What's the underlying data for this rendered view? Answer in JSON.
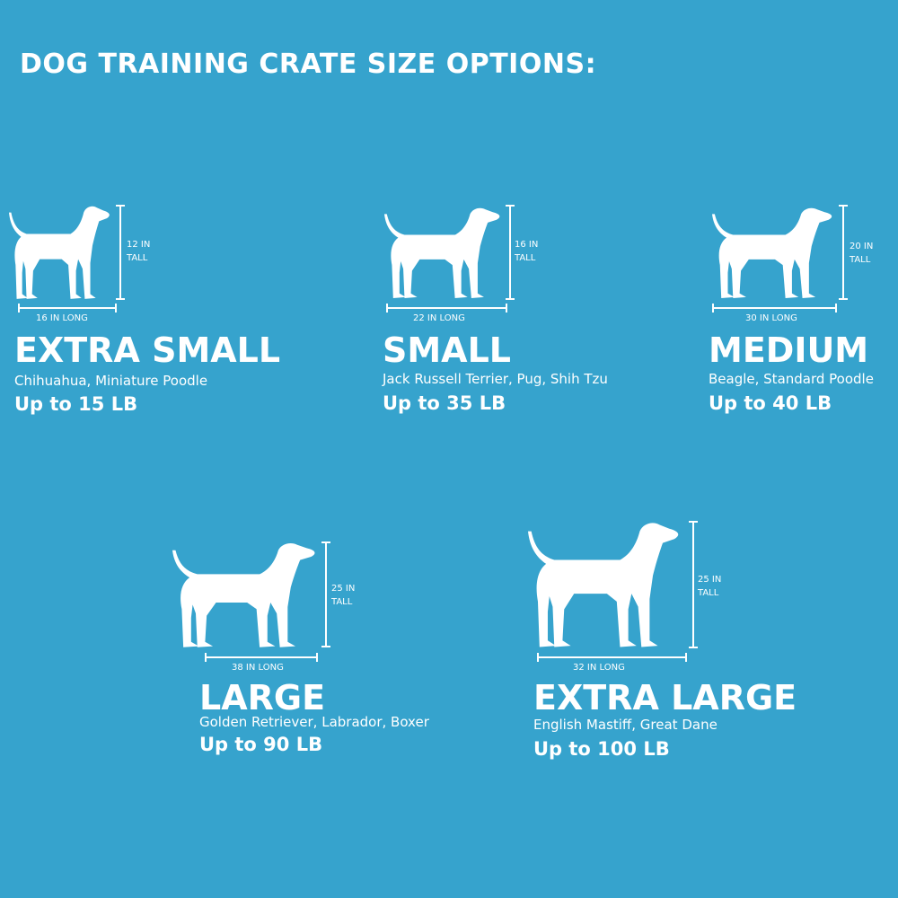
{
  "title": "DOG TRAINING CRATE SIZE OPTIONS:",
  "colors": {
    "background": "#36a3cd",
    "foreground": "#ffffff"
  },
  "sizes": [
    {
      "name": "EXTRA SMALL",
      "breeds": "Chihuahua, Miniature Poodle",
      "weight": "Up to 15 LB",
      "height_label": "12 IN",
      "tall_label": "TALL",
      "length_label": "16 IN LONG",
      "icon": "chihuahua-silhouette-icon"
    },
    {
      "name": "SMALL",
      "breeds": "Jack Russell Terrier, Pug, Shih Tzu",
      "weight": "Up to 35 LB",
      "height_label": "16 IN",
      "tall_label": "TALL",
      "length_label": "22 IN LONG",
      "icon": "terrier-silhouette-icon"
    },
    {
      "name": "MEDIUM",
      "breeds": "Beagle, Standard Poodle",
      "weight": "Up to 40 LB",
      "height_label": "20 IN",
      "tall_label": "TALL",
      "length_label": "30 IN LONG",
      "icon": "beagle-silhouette-icon"
    },
    {
      "name": "LARGE",
      "breeds": "Golden Retriever, Labrador, Boxer",
      "weight": "Up to 90 LB",
      "height_label": "25 IN",
      "tall_label": "TALL",
      "length_label": "38 IN LONG",
      "icon": "retriever-silhouette-icon"
    },
    {
      "name": "EXTRA LARGE",
      "breeds": "English Mastiff, Great Dane",
      "weight": "Up to 100 LB",
      "height_label": "25 IN",
      "tall_label": "TALL",
      "length_label": "32 IN LONG",
      "icon": "mastiff-silhouette-icon"
    }
  ]
}
